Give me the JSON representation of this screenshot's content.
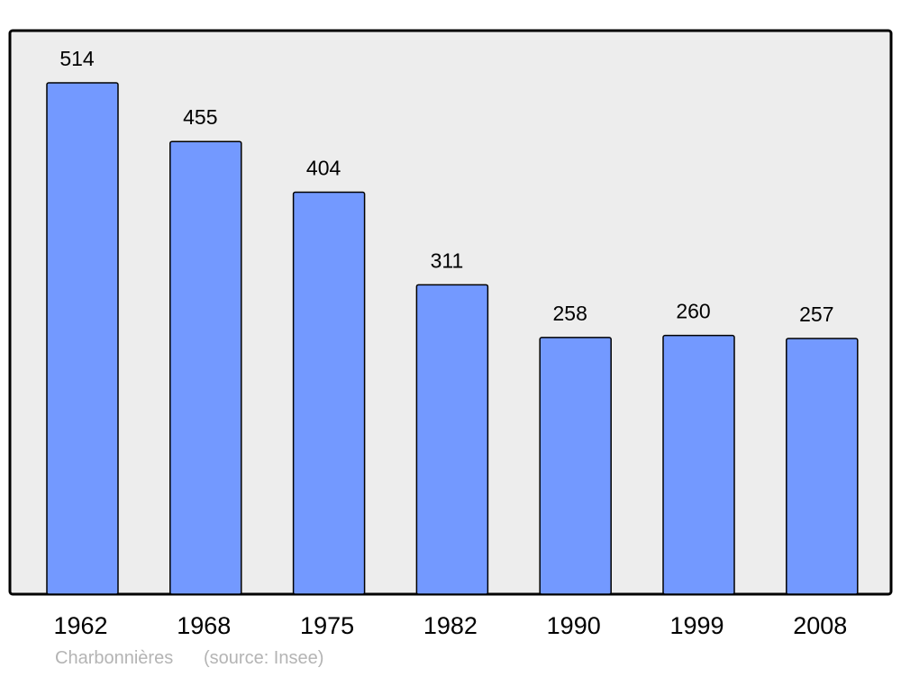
{
  "chart_data": {
    "type": "bar",
    "categories": [
      "1962",
      "1968",
      "1975",
      "1982",
      "1990",
      "1999",
      "2008"
    ],
    "values": [
      514,
      455,
      404,
      311,
      258,
      260,
      257
    ],
    "data_labels": [
      "514",
      "455",
      "404",
      "311",
      "258",
      "260",
      "257"
    ],
    "title": "",
    "xlabel": "",
    "ylabel": "",
    "ylim": [
      0,
      514
    ],
    "grid": false,
    "colors": {
      "bar": "#7399FF",
      "background": "#EDEDED",
      "border": "#000000",
      "footer": "#B4B4B4"
    }
  },
  "footer": {
    "place": "Charbonnières",
    "source": "(source: Insee)"
  }
}
